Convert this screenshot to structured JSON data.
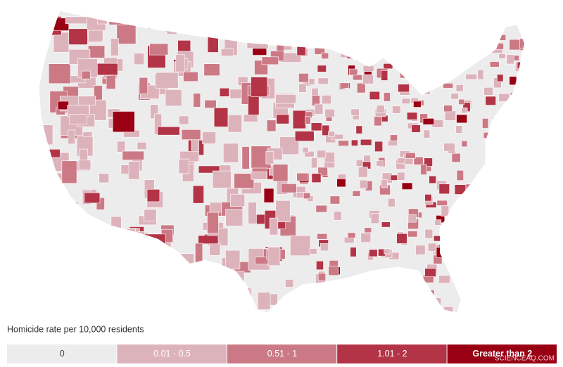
{
  "legend": {
    "title": "Homicide rate per 10,000 residents",
    "items": [
      {
        "label": "0",
        "color": "#ececec"
      },
      {
        "label": "0.01 - 0.5",
        "color": "#ddb3bb"
      },
      {
        "label": "0.51 - 1",
        "color": "#cc7986"
      },
      {
        "label": "1.01 - 2",
        "color": "#b23446"
      },
      {
        "label": "Greater than 2",
        "color": "#990014"
      }
    ]
  },
  "watermark": "SCIENCEAQ.COM"
}
